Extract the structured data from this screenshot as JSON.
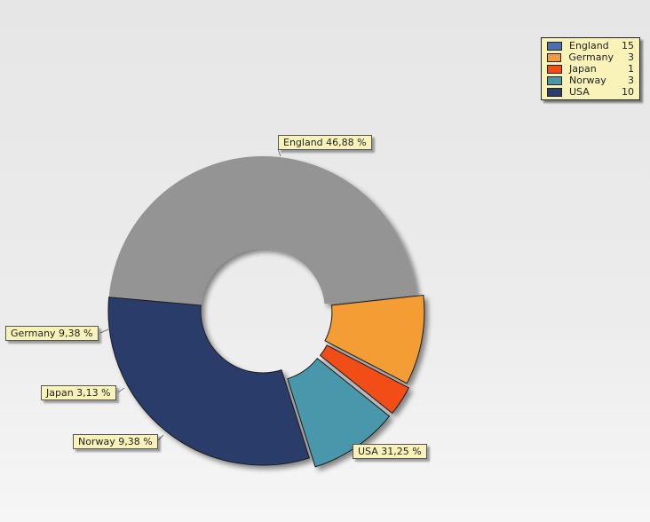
{
  "chart_data": {
    "type": "pie",
    "style": "donut with exploded slices",
    "categories": [
      "England",
      "Germany",
      "Japan",
      "Norway",
      "USA"
    ],
    "values": [
      15,
      3,
      1,
      3,
      10
    ],
    "percent_labels": [
      "England 46,88 %",
      "Germany 9,38 %",
      "Japan 3,13 %",
      "Norway 9,38 %",
      "USA 31,25 %"
    ],
    "colors": [
      "#949494",
      "#f49d35",
      "#f24d14",
      "#4a97aa",
      "#2c3e6a"
    ],
    "legend_colors": [
      "#4d6fae",
      "#f49d35",
      "#f24d14",
      "#4a97aa",
      "#2c3e6a"
    ],
    "legend_position": "top-right",
    "legend": [
      {
        "name": "England",
        "value": "15"
      },
      {
        "name": "Germany",
        "value": "3"
      },
      {
        "name": "Japan",
        "value": "1"
      },
      {
        "name": "Norway",
        "value": "3"
      },
      {
        "name": "USA",
        "value": "10"
      }
    ]
  }
}
